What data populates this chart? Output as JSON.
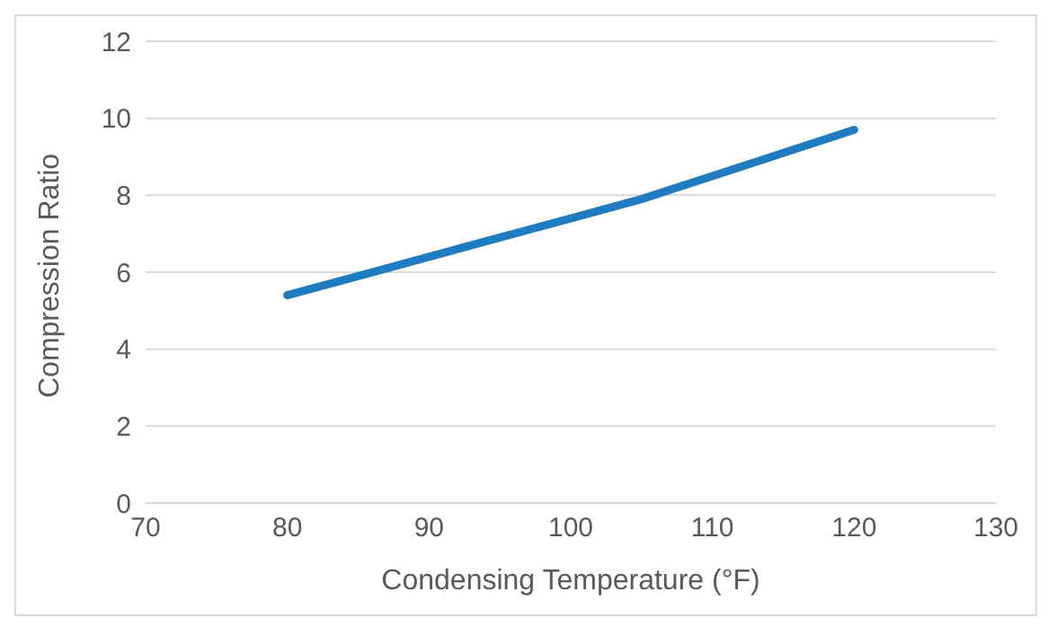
{
  "chart_data": {
    "type": "line",
    "xlabel": "Condensing Temperature (°F)",
    "ylabel": "Compression Ratio",
    "x": [
      80,
      85,
      90,
      95,
      100,
      105,
      110,
      115,
      120
    ],
    "series": [
      {
        "color": "#1f7cc1",
        "values": [
          5.4,
          5.9,
          6.4,
          6.9,
          7.4,
          7.9,
          8.5,
          9.1,
          9.7
        ]
      }
    ],
    "xlim": [
      70,
      130
    ],
    "xticks": [
      70,
      80,
      90,
      100,
      110,
      120,
      130
    ],
    "ylim": [
      0,
      12
    ],
    "yticks": [
      0,
      2,
      4,
      6,
      8,
      10,
      12
    ],
    "grid": "y",
    "legend": false,
    "marker": "none",
    "line_style": "solid"
  }
}
